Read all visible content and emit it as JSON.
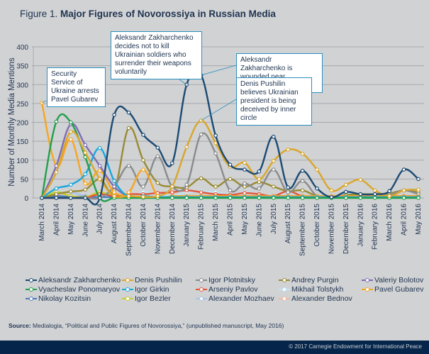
{
  "figure": {
    "lead": "Figure 1.",
    "title": "Major Figures of Novorossiya in Russian Media"
  },
  "source": {
    "label": "Source:",
    "text": " Medialogia, “Political and Public Figures of Novorossiya,” (unpublished manuscript, May 2016)"
  },
  "footer": {
    "copyright": "© 2017 Carnegie Endowment for International Peace"
  },
  "annotations": [
    {
      "text": "Security Service of Ukraine arrests Pavel Gubarev",
      "series": "Pavel Gubarev",
      "month": "March 2014"
    },
    {
      "text": "Aleksandr Zakharchenko decides not to kill Ukrainian soldiers who surrender their weapons voluntarily",
      "series": "Aleksandr Zakharchenko",
      "month": "January 2015"
    },
    {
      "text": "Aleksandr Zakharchenko is wounded near Debaltsevo",
      "series": "Aleksandr Zakharchenko",
      "month": "February 2015"
    },
    {
      "text": "Denis Pushilin believes Ukrainian president is being deceived by inner circle",
      "series": "Denis Pushilin",
      "month": "February 2015"
    }
  ],
  "chart_data": {
    "type": "line",
    "title": "Major Figures of Novorossiya in Russian Media",
    "xlabel": "",
    "ylabel": "Number of Monthly Media Mentions",
    "ylim": [
      0,
      400
    ],
    "yticks": [
      0,
      50,
      100,
      150,
      200,
      250,
      300,
      350,
      400
    ],
    "grid": true,
    "legend_position": "bottom",
    "categories": [
      "March 2014",
      "April 2014",
      "May 2014",
      "June 2014",
      "July 2014",
      "August 2014",
      "September 2014",
      "October 2014",
      "November 2014",
      "December 2014",
      "January 2015",
      "February 2015",
      "March 2015",
      "April 2015",
      "May 2015",
      "June 2015",
      "July 2015",
      "August 2015",
      "September 2015",
      "October 2015",
      "November 2015",
      "December 2015",
      "January 2016",
      "February 2016",
      "March 2016",
      "April 2016",
      "May 2016"
    ],
    "series": [
      {
        "name": "Aleksandr Zakharchenko",
        "color": "#1b4a73",
        "values": [
          0,
          0,
          0,
          0,
          0,
          220,
          226,
          167,
          133,
          92,
          300,
          325,
          165,
          88,
          75,
          70,
          162,
          28,
          72,
          25,
          2,
          16,
          10,
          10,
          18,
          75,
          50
        ]
      },
      {
        "name": "Vyacheslav Ponomaryov",
        "color": "#22a04b",
        "values": [
          0,
          202,
          200,
          108,
          0,
          0,
          0,
          0,
          0,
          0,
          0,
          0,
          0,
          0,
          0,
          0,
          0,
          0,
          0,
          0,
          0,
          0,
          0,
          0,
          0,
          0,
          0
        ]
      },
      {
        "name": "Nikolay Kozitsin",
        "color": "#4d78b8",
        "values": [
          0,
          5,
          3,
          3,
          2,
          2,
          2,
          2,
          1,
          1,
          1,
          1,
          1,
          1,
          1,
          1,
          1,
          1,
          1,
          1,
          1,
          1,
          1,
          1,
          1,
          1,
          1
        ]
      },
      {
        "name": "Denis Pushilin",
        "color": "#d9a62a",
        "values": [
          0,
          68,
          175,
          120,
          50,
          5,
          5,
          3,
          5,
          30,
          135,
          205,
          145,
          83,
          93,
          50,
          98,
          128,
          117,
          75,
          20,
          35,
          48,
          20,
          5,
          20,
          22
        ]
      },
      {
        "name": "Igor Girkin",
        "color": "#1aa7de",
        "values": [
          0,
          25,
          35,
          63,
          132,
          45,
          3,
          5,
          2,
          2,
          2,
          2,
          2,
          2,
          2,
          2,
          2,
          2,
          2,
          2,
          2,
          2,
          2,
          2,
          2,
          2,
          2
        ]
      },
      {
        "name": "Igor Bezler",
        "color": "#c9cf2a",
        "values": [
          0,
          15,
          5,
          2,
          15,
          5,
          1,
          1,
          1,
          1,
          1,
          1,
          1,
          1,
          1,
          1,
          1,
          1,
          1,
          1,
          1,
          1,
          1,
          1,
          1,
          1,
          1
        ]
      },
      {
        "name": "Igor Plotnitsky",
        "color": "#8a8b8d",
        "values": [
          0,
          0,
          0,
          0,
          0,
          30,
          85,
          30,
          110,
          30,
          35,
          168,
          118,
          20,
          38,
          25,
          75,
          15,
          45,
          5,
          3,
          5,
          5,
          5,
          8,
          20,
          10
        ]
      },
      {
        "name": "Arseniy Pavlov",
        "color": "#e4553a",
        "values": [
          0,
          0,
          0,
          0,
          10,
          5,
          10,
          10,
          13,
          15,
          20,
          15,
          10,
          8,
          13,
          10,
          5,
          18,
          5,
          5,
          2,
          5,
          5,
          5,
          5,
          5,
          5
        ]
      },
      {
        "name": "Alexander Mozhaev",
        "color": "#a9c4e8",
        "values": [
          0,
          10,
          15,
          5,
          3,
          3,
          3,
          3,
          3,
          3,
          3,
          3,
          3,
          3,
          3,
          3,
          3,
          3,
          3,
          3,
          3,
          3,
          3,
          3,
          3,
          3,
          3
        ]
      },
      {
        "name": "Andrey Purgin",
        "color": "#998b34",
        "values": [
          0,
          10,
          17,
          22,
          50,
          20,
          185,
          100,
          40,
          30,
          28,
          52,
          30,
          50,
          30,
          42,
          30,
          18,
          20,
          5,
          2,
          8,
          10,
          10,
          12,
          20,
          15
        ]
      },
      {
        "name": "Mikhail Tolstykh",
        "color": "#bfe4f6",
        "values": [
          0,
          0,
          0,
          0,
          0,
          0,
          0,
          15,
          10,
          5,
          15,
          18,
          15,
          10,
          15,
          10,
          5,
          15,
          5,
          2,
          2,
          12,
          5,
          5,
          5,
          5,
          5
        ]
      },
      {
        "name": "Alexander Bednov",
        "color": "#f2b8a0",
        "values": [
          0,
          2,
          3,
          2,
          1,
          1,
          1,
          1,
          1,
          1,
          1,
          1,
          1,
          1,
          1,
          1,
          1,
          1,
          1,
          1,
          1,
          1,
          1,
          1,
          1,
          1,
          1
        ]
      },
      {
        "name": "Valeriy Bolotov",
        "color": "#7f6db3",
        "values": [
          0,
          85,
          195,
          140,
          85,
          30,
          5,
          3,
          2,
          2,
          2,
          2,
          2,
          2,
          2,
          2,
          2,
          2,
          2,
          2,
          2,
          2,
          2,
          2,
          2,
          2,
          2
        ]
      },
      {
        "name": "Pavel Gubarev",
        "color": "#f5a623",
        "values": [
          252,
          85,
          155,
          38,
          72,
          15,
          15,
          75,
          5,
          5,
          5,
          5,
          5,
          5,
          5,
          5,
          5,
          5,
          5,
          5,
          5,
          5,
          5,
          5,
          5,
          5,
          5
        ]
      }
    ]
  }
}
